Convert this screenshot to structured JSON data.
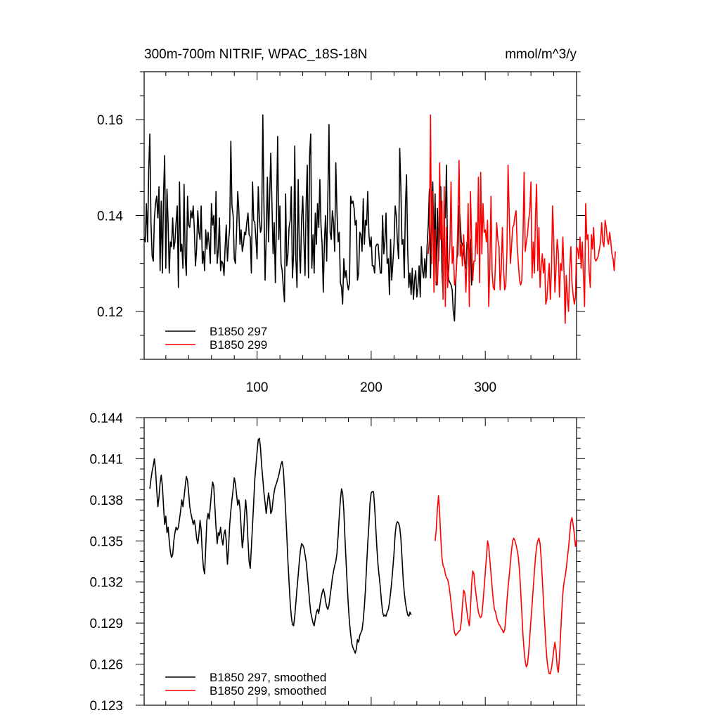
{
  "colors": {
    "run_297": "#000000",
    "run_299": "#ff0000"
  },
  "chart_data": [
    {
      "type": "line",
      "title": "300m-700m NITRIF, WPAC_18S-18N",
      "units": "mmol/m^3/y",
      "xlabel": "",
      "ylabel": "",
      "xlim": [
        1,
        380
      ],
      "ylim": [
        0.11,
        0.17
      ],
      "xticks": [
        100,
        200,
        300
      ],
      "xtick_labels": [
        "100",
        "200",
        "300"
      ],
      "yticks": [
        0.12,
        0.14,
        0.16
      ],
      "ytick_labels": [
        "0.12",
        "0.14",
        "0.16"
      ],
      "legend_position": "bottom-left",
      "series": [
        {
          "name": "B1850 297",
          "color": "#000000",
          "x_start": 1,
          "values": [
            0.1355,
            0.1345,
            0.1425,
            0.1345,
            0.1495,
            0.157,
            0.1385,
            0.1315,
            0.1305,
            0.1395,
            0.1425,
            0.144,
            0.1395,
            0.146,
            0.1285,
            0.143,
            0.128,
            0.1445,
            0.1525,
            0.129,
            0.1455,
            0.1385,
            0.128,
            0.1345,
            0.1335,
            0.1395,
            0.133,
            0.1345,
            0.1385,
            0.142,
            0.125,
            0.147,
            0.1325,
            0.134,
            0.129,
            0.1465,
            0.1315,
            0.1275,
            0.144,
            0.138,
            0.1375,
            0.141,
            0.1395,
            0.142,
            0.137,
            0.1295,
            0.133,
            0.141,
            0.1365,
            0.135,
            0.142,
            0.13,
            0.1325,
            0.1285,
            0.137,
            0.133,
            0.1365,
            0.134,
            0.13,
            0.1425,
            0.138,
            0.14,
            0.132,
            0.145,
            0.13,
            0.133,
            0.1395,
            0.1285,
            0.1305,
            0.13,
            0.1275,
            0.1335,
            0.138,
            0.1305,
            0.1345,
            0.1375,
            0.1555,
            0.142,
            0.14,
            0.131,
            0.13,
            0.1365,
            0.145,
            0.141,
            0.134,
            0.137,
            0.1325,
            0.134,
            0.1365,
            0.136,
            0.1385,
            0.1405,
            0.136,
            0.1355,
            0.128,
            0.147,
            0.139,
            0.1385,
            0.135,
            0.131,
            0.146,
            0.1395,
            0.1365,
            0.1375,
            0.161,
            0.142,
            0.1265,
            0.1355,
            0.148,
            0.1345,
            0.144,
            0.153,
            0.143,
            0.132,
            0.1385,
            0.126,
            0.1395,
            0.1565,
            0.135,
            0.142,
            0.13,
            0.1285,
            0.125,
            0.122,
            0.1445,
            0.1295,
            0.132,
            0.1375,
            0.139,
            0.146,
            0.127,
            0.132,
            0.1545,
            0.131,
            0.125,
            0.1475,
            0.133,
            0.128,
            0.139,
            0.144,
            0.135,
            0.1275,
            0.1425,
            0.1505,
            0.127,
            0.1525,
            0.157,
            0.129,
            0.136,
            0.128,
            0.1405,
            0.134,
            0.1425,
            0.1375,
            0.1475,
            0.138,
            0.134,
            0.124,
            0.1345,
            0.14,
            0.1305,
            0.144,
            0.159,
            0.1365,
            0.135,
            0.141,
            0.1385,
            0.1325,
            0.151,
            0.141,
            0.1345,
            0.1365,
            0.126,
            0.125,
            0.1215,
            0.131,
            0.127,
            0.1285,
            0.126,
            0.1245,
            0.126,
            0.144,
            0.1425,
            0.143,
            0.1415,
            0.138,
            0.139,
            0.1265,
            0.128,
            0.1365,
            0.136,
            0.1325,
            0.1435,
            0.134,
            0.139,
            0.138,
            0.145,
            0.136,
            0.1335,
            0.1355,
            0.1295,
            0.1295,
            0.128,
            0.1335,
            0.134,
            0.134,
            0.131,
            0.128,
            0.128,
            0.14,
            0.132,
            0.1345,
            0.1405,
            0.13,
            0.131,
            0.1235,
            0.135,
            0.1265,
            0.13,
            0.134,
            0.142,
            0.14,
            0.1345,
            0.131,
            0.154,
            0.146,
            0.134,
            0.135,
            0.127,
            0.142,
            0.1485,
            0.133,
            0.125,
            0.128,
            0.1235,
            0.129,
            0.1225,
            0.1265,
            0.1285,
            0.123,
            0.125,
            0.1295,
            0.123,
            0.1335,
            0.1285,
            0.127,
            0.131,
            0.127,
            0.1335,
            0.138,
            0.1455,
            0.127,
            0.1405,
            0.147,
            0.1325,
            0.1445,
            0.1255,
            0.1415,
            0.1305,
            0.1375,
            0.146,
            0.1285,
            0.124,
            0.1425,
            0.1395,
            0.1505,
            0.13,
            0.1265,
            0.126,
            0.1255,
            0.1245,
            0.12,
            0.118,
            0.1255,
            0.131,
            0.132,
            0.142,
            0.139,
            0.1345,
            0.134,
            0.133,
            0.13,
            0.129,
            0.1345,
            0.1335,
            0.132,
            0.135,
            0.1255,
            0.13
          ]
        },
        {
          "name": "B1850 299",
          "color": "#ff0000",
          "x_start": 250,
          "values": [
            0.132,
            0.135,
            0.161,
            0.13,
            0.145,
            0.124,
            0.137,
            0.1265,
            0.1255,
            0.1325,
            0.151,
            0.135,
            0.143,
            0.1225,
            0.146,
            0.121,
            0.1375,
            0.125,
            0.129,
            0.134,
            0.147,
            0.13,
            0.1335,
            0.1255,
            0.1265,
            0.13,
            0.1385,
            0.1515,
            0.1315,
            0.134,
            0.1295,
            0.136,
            0.131,
            0.124,
            0.1315,
            0.1425,
            0.121,
            0.145,
            0.1355,
            0.1265,
            0.1305,
            0.1305,
            0.1385,
            0.132,
            0.148,
            0.126,
            0.149,
            0.132,
            0.1425,
            0.1365,
            0.137,
            0.1345,
            0.139,
            0.121,
            0.13,
            0.144,
            0.128,
            0.125,
            0.1245,
            0.1305,
            0.1385,
            0.135,
            0.1335,
            0.1245,
            0.129,
            0.1375,
            0.129,
            0.1245,
            0.1255,
            0.1325,
            0.1505,
            0.14,
            0.13,
            0.1335,
            0.1375,
            0.138,
            0.14,
            0.141,
            0.1335,
            0.13,
            0.1265,
            0.1255,
            0.1265,
            0.1345,
            0.149,
            0.1325,
            0.1345,
            0.136,
            0.139,
            0.141,
            0.147,
            0.127,
            0.1345,
            0.128,
            0.14,
            0.1465,
            0.1285,
            0.1375,
            0.125,
            0.1295,
            0.132,
            0.128,
            0.131,
            0.1215,
            0.1225,
            0.1265,
            0.13,
            0.1225,
            0.129,
            0.142,
            0.1355,
            0.124,
            0.129,
            0.135,
            0.1325,
            0.123,
            0.13,
            0.1285,
            0.1355,
            0.128,
            0.1175,
            0.1275,
            0.123,
            0.12,
            0.129,
            0.1335,
            0.126,
            0.1235,
            0.1215,
            0.123,
            0.1335,
            0.133,
            0.131,
            0.1355,
            0.129,
            0.1345,
            0.128,
            0.121,
            0.1425,
            0.135,
            0.136,
            0.1285,
            0.125,
            0.136,
            0.133,
            0.1375,
            0.131,
            0.1305,
            0.131,
            0.1315,
            0.133,
            0.1345,
            0.1385,
            0.1345,
            0.1335,
            0.139,
            0.1375,
            0.135,
            0.134,
            0.1365,
            0.1345,
            0.132,
            0.131,
            0.1285,
            0.1325
          ]
        }
      ]
    },
    {
      "type": "line",
      "title": "",
      "xlabel": "",
      "ylabel": "",
      "xlim": [
        1,
        380
      ],
      "ylim": [
        0.123,
        0.144
      ],
      "xticks": [
        100,
        200,
        300
      ],
      "yticks": [
        0.123,
        0.126,
        0.129,
        0.132,
        0.135,
        0.138,
        0.141,
        0.144
      ],
      "ytick_labels": [
        "0.123",
        "0.126",
        "0.129",
        "0.132",
        "0.135",
        "0.138",
        "0.141",
        "0.144"
      ],
      "legend_position": "bottom-left",
      "series": [
        {
          "name": "B1850 297, smoothed",
          "color": "#000000",
          "x_start": 6,
          "values": [
            0.1388,
            0.1395,
            0.1401,
            0.1405,
            0.141,
            0.1402,
            0.1388,
            0.1375,
            0.1382,
            0.1392,
            0.1398,
            0.139,
            0.1375,
            0.1362,
            0.1368,
            0.1356,
            0.136,
            0.135,
            0.1342,
            0.1338,
            0.134,
            0.135,
            0.1356,
            0.136,
            0.1358,
            0.136,
            0.1366,
            0.1372,
            0.138,
            0.1375,
            0.1382,
            0.139,
            0.1397,
            0.1394,
            0.1385,
            0.1375,
            0.137,
            0.1366,
            0.1362,
            0.1365,
            0.136,
            0.1352,
            0.1348,
            0.1355,
            0.1365,
            0.1358,
            0.134,
            0.133,
            0.1326,
            0.1345,
            0.1365,
            0.137,
            0.1366,
            0.1375,
            0.1385,
            0.1393,
            0.139,
            0.1375,
            0.136,
            0.1348,
            0.1356,
            0.1354,
            0.136,
            0.1352,
            0.1347,
            0.1355,
            0.1358,
            0.135,
            0.1333,
            0.1345,
            0.1362,
            0.1372,
            0.138,
            0.1388,
            0.1396,
            0.1392,
            0.1384,
            0.1376,
            0.138,
            0.1374,
            0.136,
            0.1345,
            0.1352,
            0.1368,
            0.138,
            0.137,
            0.135,
            0.1335,
            0.133,
            0.1345,
            0.1362,
            0.1378,
            0.1395,
            0.1405,
            0.1415,
            0.1424,
            0.1425,
            0.1418,
            0.1405,
            0.1395,
            0.1385,
            0.1378,
            0.137,
            0.1378,
            0.1385,
            0.138,
            0.137,
            0.1372,
            0.138,
            0.1386,
            0.139,
            0.1392,
            0.1395,
            0.1398,
            0.1402,
            0.1406,
            0.1408,
            0.1402,
            0.1388,
            0.1372,
            0.1355,
            0.1335,
            0.132,
            0.1305,
            0.1295,
            0.1289,
            0.1288,
            0.1295,
            0.1305,
            0.1315,
            0.1325,
            0.1335,
            0.1343,
            0.1348,
            0.1347,
            0.1345,
            0.134,
            0.1335,
            0.1326,
            0.1316,
            0.1306,
            0.1298,
            0.1294,
            0.129,
            0.1288,
            0.1293,
            0.1298,
            0.13,
            0.1297,
            0.1303,
            0.1308,
            0.1312,
            0.1315,
            0.1312,
            0.1306,
            0.1302,
            0.13,
            0.1303,
            0.131,
            0.1316,
            0.1323,
            0.1328,
            0.1332,
            0.1335,
            0.1341,
            0.1354,
            0.1368,
            0.138,
            0.1388,
            0.1385,
            0.1372,
            0.1352,
            0.1335,
            0.1318,
            0.1302,
            0.129,
            0.1282,
            0.1275,
            0.1272,
            0.127,
            0.1268,
            0.1271,
            0.1278,
            0.1276,
            0.1281,
            0.1283,
            0.1285,
            0.1292,
            0.1302,
            0.1315,
            0.1332,
            0.1348,
            0.1362,
            0.1378,
            0.1385,
            0.1386,
            0.1386,
            0.1375,
            0.136,
            0.1345,
            0.1332,
            0.1324,
            0.1316,
            0.1306,
            0.1298,
            0.1295,
            0.1296,
            0.1295,
            0.1298,
            0.13,
            0.1305,
            0.1312,
            0.132,
            0.133,
            0.1341,
            0.1355,
            0.1362,
            0.1364,
            0.1363,
            0.136,
            0.1352,
            0.1338,
            0.1322,
            0.1312,
            0.1305,
            0.13,
            0.1296,
            0.1295,
            0.1298,
            0.1296
          ]
        },
        {
          "name": "B1850 299, smoothed",
          "color": "#ff0000",
          "x_start": 256,
          "values": [
            0.135,
            0.1358,
            0.1373,
            0.1383,
            0.137,
            0.1352,
            0.1338,
            0.1332,
            0.133,
            0.1326,
            0.1323,
            0.1322,
            0.1318,
            0.1312,
            0.1305,
            0.1297,
            0.129,
            0.1283,
            0.1281,
            0.1282,
            0.1283,
            0.1284,
            0.1285,
            0.1291,
            0.1303,
            0.1314,
            0.1312,
            0.1305,
            0.1298,
            0.1292,
            0.1288,
            0.13,
            0.1318,
            0.1328,
            0.1326,
            0.1317,
            0.131,
            0.1304,
            0.1298,
            0.1295,
            0.1294,
            0.1296,
            0.1305,
            0.1316,
            0.1327,
            0.1338,
            0.135,
            0.1346,
            0.1336,
            0.1326,
            0.1316,
            0.1307,
            0.13,
            0.1298,
            0.1294,
            0.1291,
            0.1289,
            0.1288,
            0.1286,
            0.1285,
            0.1283,
            0.1285,
            0.1294,
            0.1306,
            0.1316,
            0.1325,
            0.1334,
            0.1343,
            0.135,
            0.1352,
            0.135,
            0.1347,
            0.1343,
            0.1338,
            0.1328,
            0.1314,
            0.1298,
            0.1282,
            0.127,
            0.1262,
            0.1258,
            0.126,
            0.1268,
            0.128,
            0.1292,
            0.1303,
            0.1315,
            0.1327,
            0.1338,
            0.1346,
            0.135,
            0.1352,
            0.1348,
            0.1337,
            0.1322,
            0.1306,
            0.129,
            0.1275,
            0.1264,
            0.1257,
            0.1253,
            0.1253,
            0.1257,
            0.1263,
            0.127,
            0.1276,
            0.127,
            0.1258,
            0.1254,
            0.1265,
            0.1282,
            0.1298,
            0.1312,
            0.132,
            0.1324,
            0.133,
            0.1338,
            0.1345,
            0.1355,
            0.1364,
            0.1367,
            0.1362,
            0.1355,
            0.1346,
            0.1351
          ]
        }
      ]
    }
  ]
}
